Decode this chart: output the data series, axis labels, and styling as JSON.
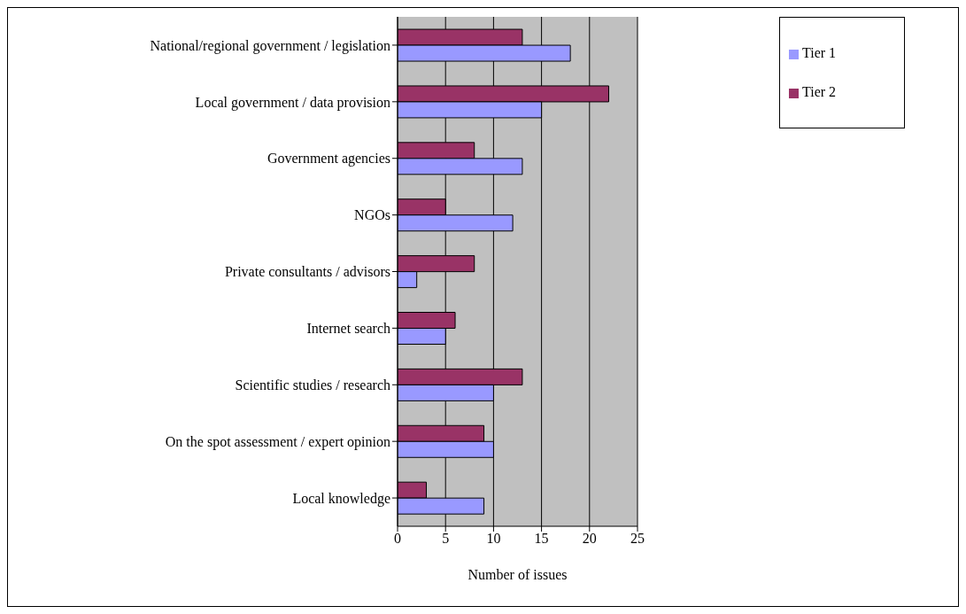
{
  "chart_data": {
    "type": "bar",
    "orientation": "horizontal",
    "xlabel": "Number of issues",
    "categories": [
      "National/regional government / legislation",
      "Local government / data provision",
      "Government agencies",
      "NGOs",
      "Private consultants / advisors",
      "Internet search",
      "Scientific studies / research",
      "On the spot assessment / expert opinion",
      "Local knowledge"
    ],
    "series": [
      {
        "name": "Tier 2",
        "color": "#993366",
        "values": [
          13,
          22,
          8,
          5,
          8,
          6,
          13,
          9,
          3
        ]
      },
      {
        "name": "Tier 1",
        "color": "#9999ff",
        "values": [
          18,
          15,
          13,
          12,
          2,
          5,
          10,
          10,
          9
        ]
      }
    ],
    "xlim": [
      0,
      25
    ],
    "xticks": [
      0,
      5,
      10,
      15,
      20,
      25
    ],
    "grid": "x",
    "legend": "top right"
  }
}
